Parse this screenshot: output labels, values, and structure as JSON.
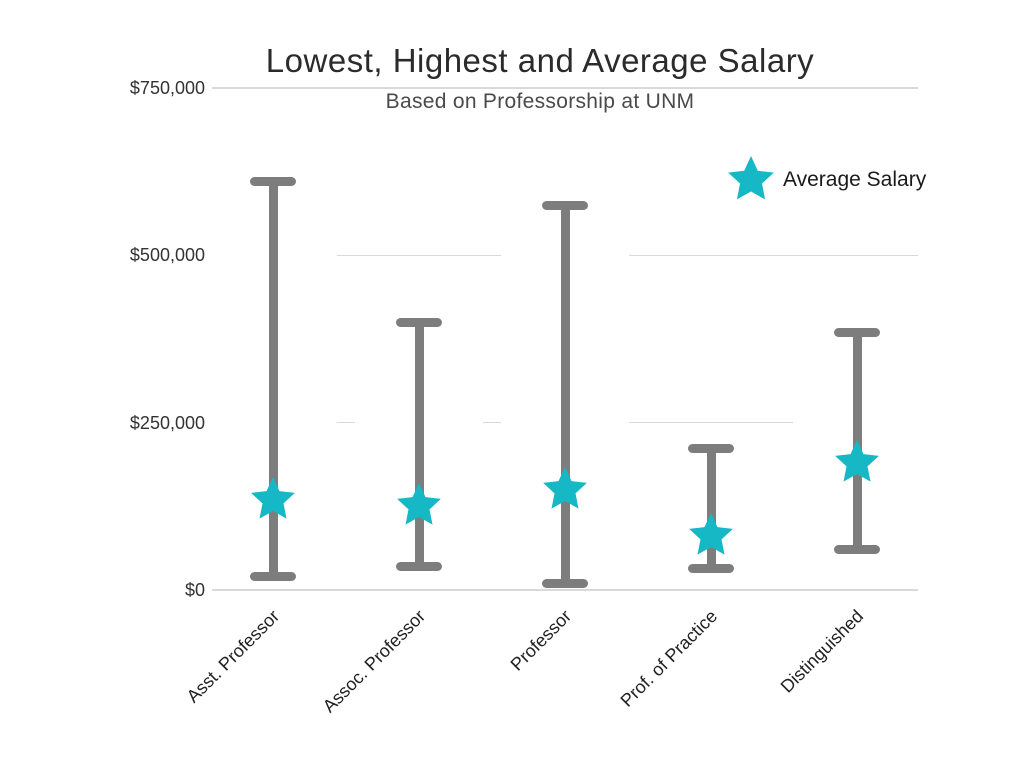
{
  "chart_data": {
    "type": "bar",
    "subtype": "range-with-average-marker",
    "title": "Lowest, Highest and Average Salary",
    "subtitle": "Based on Professorship at UNM",
    "categories": [
      "Asst. Professor",
      "Assoc. Professor",
      "Professor",
      "Prof. of Practice",
      "Distinguished"
    ],
    "series": [
      {
        "name": "Lowest Salary",
        "values": [
          20000,
          35000,
          10000,
          32000,
          60000
        ]
      },
      {
        "name": "Highest Salary",
        "values": [
          610000,
          400000,
          575000,
          212000,
          385000
        ]
      },
      {
        "name": "Average Salary",
        "values": [
          135000,
          125000,
          150000,
          80000,
          190000
        ]
      }
    ],
    "ylim": [
      0,
      750000
    ],
    "yticks": [
      {
        "value": 0,
        "label": "$0"
      },
      {
        "value": 250000,
        "label": "$250,000"
      },
      {
        "value": 500000,
        "label": "$500,000"
      },
      {
        "value": 750000,
        "label": "$750,000"
      }
    ],
    "grid": "horizontal",
    "legend": {
      "position": "top-right",
      "entries": [
        {
          "label": "Average Salary",
          "marker": "star"
        }
      ]
    },
    "colors": {
      "range_bar": "#7d7d7d",
      "average_marker": "#15b8c4",
      "gridline": "#d9d9d9",
      "title": "#2b2b2b",
      "subtitle": "#4a4a4a",
      "tick_label": "#333333",
      "category_label": "#222222",
      "legend_label": "#1a1a1a",
      "background": "#ffffff"
    }
  }
}
